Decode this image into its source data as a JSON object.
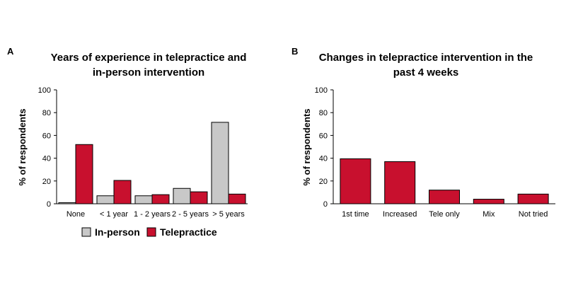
{
  "chart_data": [
    {
      "type": "bar",
      "panel": "A",
      "title": [
        "Years of experience in telepractice and",
        "in-person intervention"
      ],
      "ylabel": "% of respondents",
      "xlabel": "",
      "ylim": [
        0,
        100
      ],
      "yticks": [
        0,
        20,
        40,
        60,
        80,
        100
      ],
      "grid": false,
      "legend": "bottom",
      "categories": [
        "None",
        "< 1 year",
        "1 - 2 years",
        "2 - 5 years",
        "> 5 years"
      ],
      "series": [
        {
          "name": "In-person",
          "color": "#c8c8c8",
          "values": [
            1,
            7,
            7,
            13.5,
            71.5
          ]
        },
        {
          "name": "Telepractice",
          "color": "#c8102e",
          "values": [
            52,
            20.5,
            8,
            10.5,
            8.5
          ]
        }
      ]
    },
    {
      "type": "bar",
      "panel": "B",
      "title": [
        "Changes in telepractice intervention in the",
        "past 4 weeks"
      ],
      "ylabel": "% of respondents",
      "xlabel": "",
      "ylim": [
        0,
        100
      ],
      "yticks": [
        0,
        20,
        40,
        60,
        80,
        100
      ],
      "grid": false,
      "categories": [
        "1st time",
        "Increased",
        "Tele only",
        "Mix",
        "Not tried"
      ],
      "series": [
        {
          "color": "#c8102e",
          "values": [
            39.5,
            37,
            12,
            4,
            8.5
          ]
        }
      ]
    }
  ]
}
